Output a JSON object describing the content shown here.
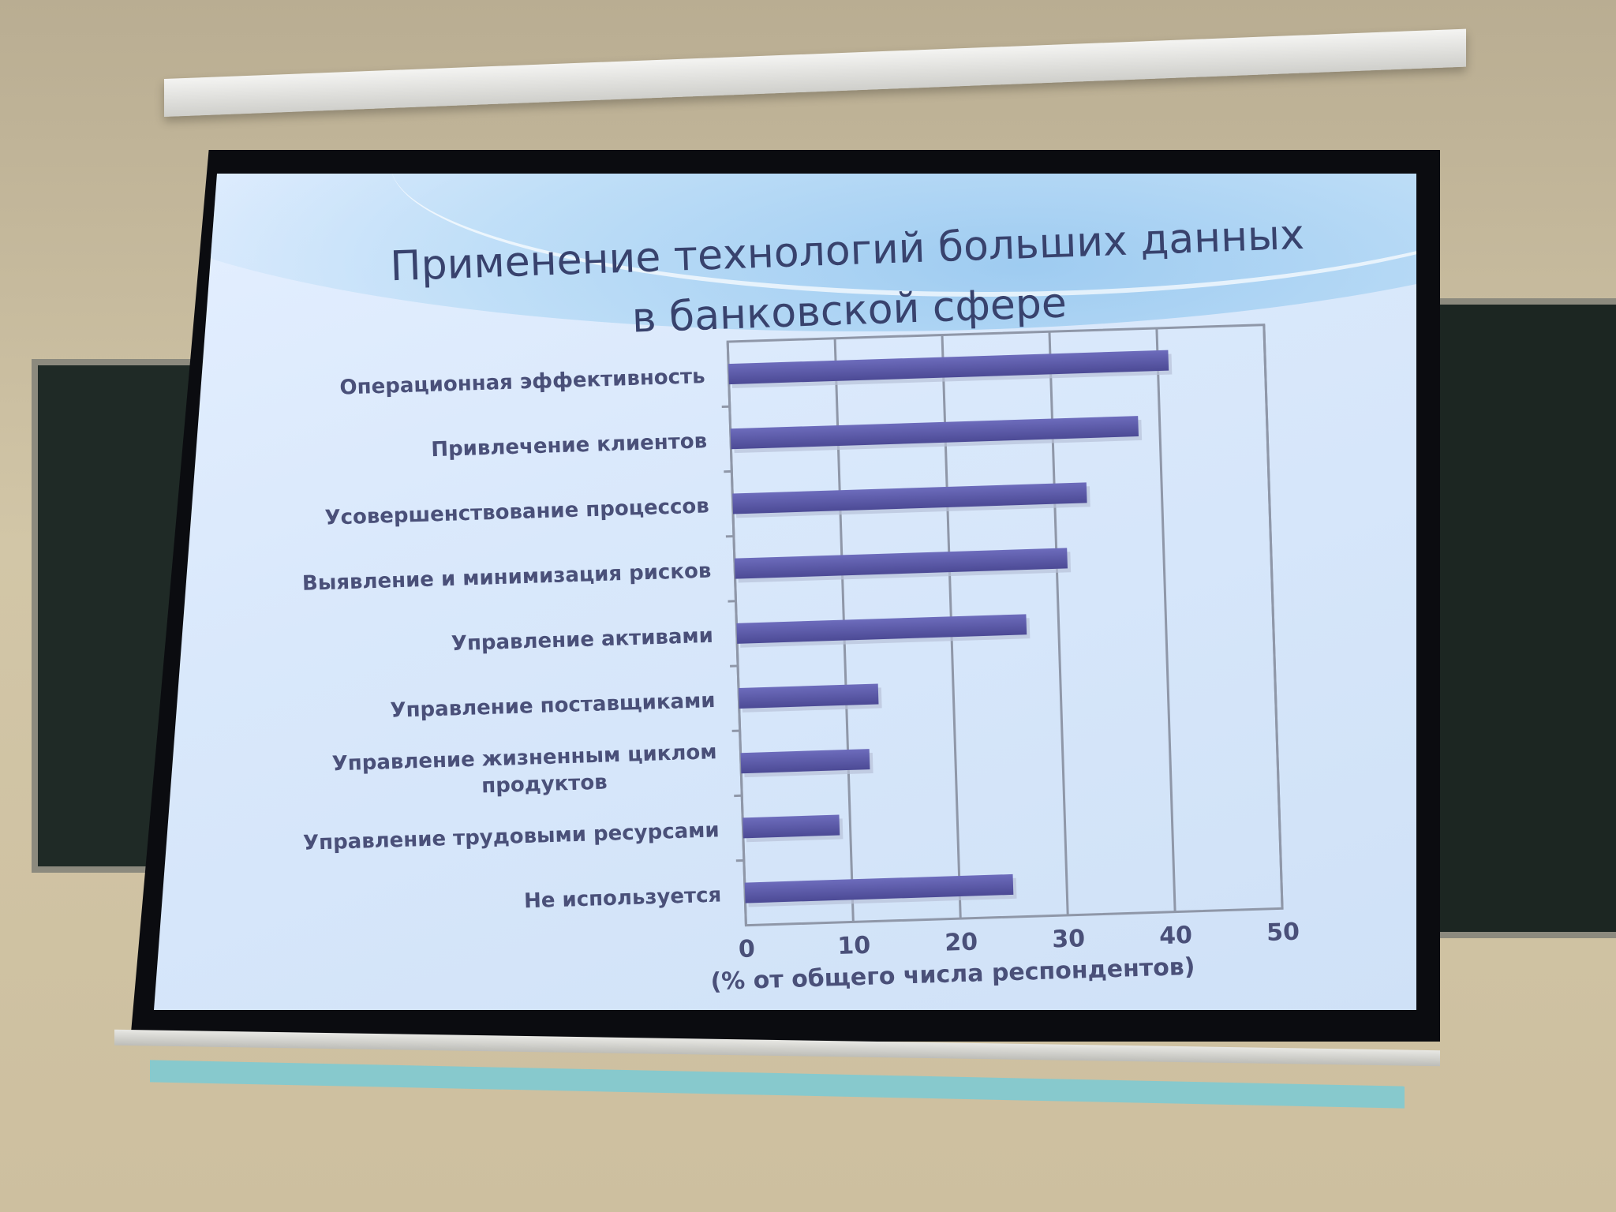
{
  "slide": {
    "title": "Применение технологий больших данных в банковской сфере"
  },
  "chart_data": {
    "type": "bar",
    "orientation": "horizontal",
    "categories": [
      "Операционная эффективность",
      "Привлечение клиентов",
      "Усовершенствование процессов",
      "Выявление и минимизация рисков",
      "Управление активами",
      "Управление поставщиками",
      "Управление жизненным циклом продуктов",
      "Управление трудовыми ресурсами",
      "Не используется"
    ],
    "values": [
      41,
      38,
      33,
      31,
      27,
      13,
      12,
      9,
      25
    ],
    "xlabel": "(% от общего числа респондентов)",
    "xlim": [
      0,
      50
    ],
    "xticks": [
      0,
      10,
      20,
      30,
      40,
      50
    ],
    "grid": true,
    "bar_color": "#5b5aa6"
  }
}
